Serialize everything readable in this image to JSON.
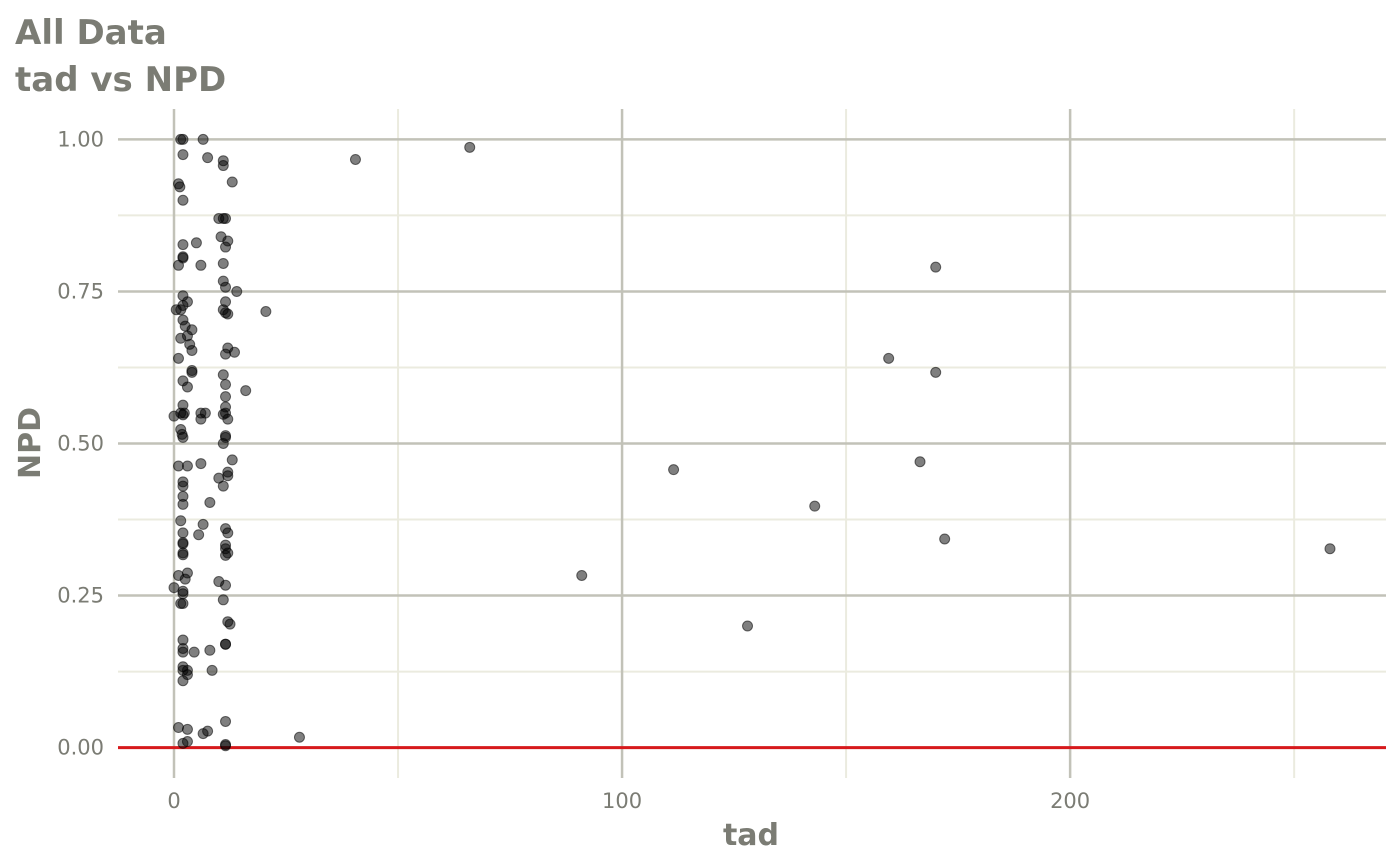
{
  "chart_data": {
    "type": "scatter",
    "title": "All Data",
    "subtitle": "tad vs NPD",
    "xlabel": "tad",
    "ylabel": "NPD",
    "xlim": [
      -12.5,
      270.5
    ],
    "ylim": [
      -0.05,
      1.05
    ],
    "x_major_ticks": [
      0,
      100,
      200
    ],
    "x_minor_ticks": [
      50,
      150,
      250
    ],
    "y_major_ticks": [
      0.0,
      0.25,
      0.5,
      0.75,
      1.0
    ],
    "y_minor_ticks": [
      0.125,
      0.375,
      0.625,
      0.875
    ],
    "x_tick_labels": [
      "0",
      "100",
      "200"
    ],
    "y_tick_labels": [
      "0.00",
      "0.25",
      "0.50",
      "0.75",
      "1.00"
    ],
    "grid": true,
    "legend": "none",
    "reference_line": {
      "y": 0,
      "color": "#d7191c"
    },
    "colors": {
      "title": "#7b7c74",
      "major_grid": "#c2c2b8",
      "minor_grid": "#ebebdf",
      "point": "#000000"
    },
    "points": [
      [
        1.5,
        1.0
      ],
      [
        2.0,
        1.0
      ],
      [
        6.5,
        1.0
      ],
      [
        2.0,
        0.975
      ],
      [
        7.5,
        0.97
      ],
      [
        11.0,
        0.965
      ],
      [
        11.0,
        0.957
      ],
      [
        13.0,
        0.93
      ],
      [
        1.0,
        0.927
      ],
      [
        1.3,
        0.922
      ],
      [
        2.0,
        0.9
      ],
      [
        10.0,
        0.87
      ],
      [
        11.0,
        0.87
      ],
      [
        11.5,
        0.87
      ],
      [
        10.5,
        0.84
      ],
      [
        12.0,
        0.833
      ],
      [
        5.0,
        0.83
      ],
      [
        2.0,
        0.827
      ],
      [
        11.5,
        0.823
      ],
      [
        2.0,
        0.807
      ],
      [
        2.0,
        0.805
      ],
      [
        1.0,
        0.793
      ],
      [
        6.0,
        0.793
      ],
      [
        11.0,
        0.796
      ],
      [
        11.0,
        0.767
      ],
      [
        11.5,
        0.757
      ],
      [
        14.0,
        0.75
      ],
      [
        2.0,
        0.743
      ],
      [
        11.5,
        0.733
      ],
      [
        3.0,
        0.733
      ],
      [
        2.0,
        0.727
      ],
      [
        11.0,
        0.72
      ],
      [
        0.5,
        0.72
      ],
      [
        1.5,
        0.72
      ],
      [
        11.5,
        0.715
      ],
      [
        12.0,
        0.713
      ],
      [
        2.0,
        0.703
      ],
      [
        2.5,
        0.693
      ],
      [
        4.0,
        0.687
      ],
      [
        3.0,
        0.677
      ],
      [
        1.5,
        0.673
      ],
      [
        3.5,
        0.663
      ],
      [
        12.0,
        0.657
      ],
      [
        4.0,
        0.653
      ],
      [
        13.5,
        0.65
      ],
      [
        11.5,
        0.647
      ],
      [
        1.0,
        0.64
      ],
      [
        4.0,
        0.62
      ],
      [
        4.0,
        0.617
      ],
      [
        11.0,
        0.613
      ],
      [
        2.0,
        0.603
      ],
      [
        11.5,
        0.597
      ],
      [
        3.0,
        0.593
      ],
      [
        16.0,
        0.587
      ],
      [
        11.5,
        0.577
      ],
      [
        2.0,
        0.563
      ],
      [
        11.5,
        0.56
      ],
      [
        0.0,
        0.545
      ],
      [
        1.5,
        0.55
      ],
      [
        2.0,
        0.547
      ],
      [
        2.3,
        0.55
      ],
      [
        6.0,
        0.55
      ],
      [
        7.0,
        0.55
      ],
      [
        11.0,
        0.548
      ],
      [
        11.5,
        0.55
      ],
      [
        6.0,
        0.54
      ],
      [
        12.0,
        0.54
      ],
      [
        1.5,
        0.523
      ],
      [
        1.8,
        0.515
      ],
      [
        2.0,
        0.51
      ],
      [
        11.5,
        0.513
      ],
      [
        11.5,
        0.51
      ],
      [
        11.0,
        0.5
      ],
      [
        13.0,
        0.473
      ],
      [
        6.0,
        0.467
      ],
      [
        1.0,
        0.463
      ],
      [
        3.0,
        0.463
      ],
      [
        12.0,
        0.453
      ],
      [
        12.0,
        0.447
      ],
      [
        10.0,
        0.443
      ],
      [
        2.0,
        0.437
      ],
      [
        2.0,
        0.43
      ],
      [
        11.0,
        0.43
      ],
      [
        2.0,
        0.413
      ],
      [
        8.0,
        0.403
      ],
      [
        2.0,
        0.4
      ],
      [
        1.5,
        0.373
      ],
      [
        6.5,
        0.367
      ],
      [
        11.5,
        0.36
      ],
      [
        2.0,
        0.353
      ],
      [
        12.0,
        0.353
      ],
      [
        5.5,
        0.35
      ],
      [
        11.5,
        0.333
      ],
      [
        2.0,
        0.337
      ],
      [
        2.0,
        0.335
      ],
      [
        11.5,
        0.327
      ],
      [
        12.0,
        0.32
      ],
      [
        2.0,
        0.32
      ],
      [
        2.0,
        0.317
      ],
      [
        11.5,
        0.316
      ],
      [
        3.0,
        0.287
      ],
      [
        1.0,
        0.283
      ],
      [
        10.0,
        0.273
      ],
      [
        2.5,
        0.277
      ],
      [
        11.5,
        0.267
      ],
      [
        0.0,
        0.263
      ],
      [
        2.0,
        0.257
      ],
      [
        2.0,
        0.253
      ],
      [
        11.0,
        0.243
      ],
      [
        1.5,
        0.237
      ],
      [
        2.0,
        0.237
      ],
      [
        12.0,
        0.207
      ],
      [
        12.5,
        0.203
      ],
      [
        2.0,
        0.177
      ],
      [
        11.5,
        0.17
      ],
      [
        11.5,
        0.17
      ],
      [
        2.0,
        0.163
      ],
      [
        8.0,
        0.16
      ],
      [
        2.0,
        0.157
      ],
      [
        4.5,
        0.157
      ],
      [
        2.0,
        0.133
      ],
      [
        2.0,
        0.127
      ],
      [
        3.0,
        0.127
      ],
      [
        8.5,
        0.127
      ],
      [
        3.0,
        0.12
      ],
      [
        2.0,
        0.11
      ],
      [
        11.5,
        0.043
      ],
      [
        1.0,
        0.033
      ],
      [
        3.0,
        0.03
      ],
      [
        7.5,
        0.027
      ],
      [
        6.5,
        0.023
      ],
      [
        28.0,
        0.017
      ],
      [
        3.0,
        0.01
      ],
      [
        2.0,
        0.007
      ],
      [
        11.5,
        0.005
      ],
      [
        11.5,
        0.003
      ],
      [
        40.5,
        0.967
      ],
      [
        66.0,
        0.987
      ],
      [
        20.5,
        0.717
      ],
      [
        111.5,
        0.457
      ],
      [
        91.0,
        0.283
      ],
      [
        128.0,
        0.2
      ],
      [
        143.0,
        0.397
      ],
      [
        159.5,
        0.64
      ],
      [
        170.0,
        0.79
      ],
      [
        170.0,
        0.617
      ],
      [
        166.5,
        0.47
      ],
      [
        172.0,
        0.343
      ],
      [
        258.0,
        0.327
      ]
    ]
  }
}
